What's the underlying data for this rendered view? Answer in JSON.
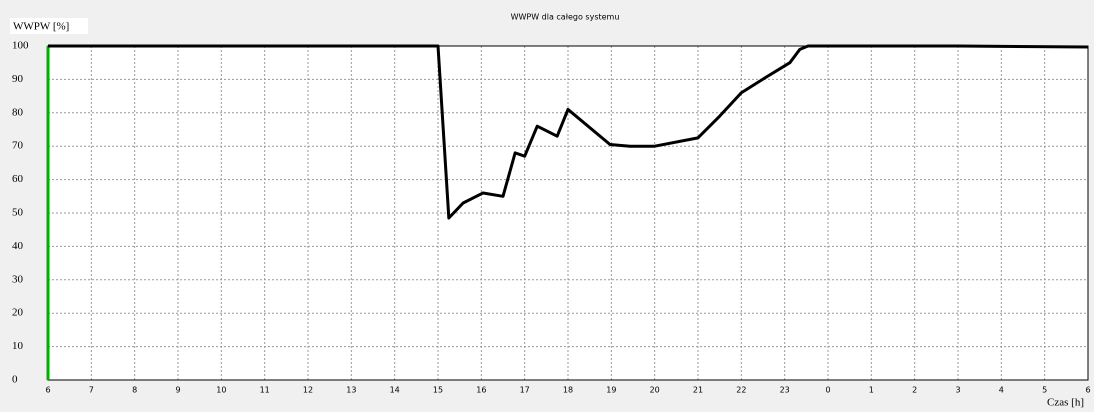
{
  "chart_data": {
    "type": "line",
    "title": "WWPW dla całego systemu",
    "ylabel": "WWPW [%]",
    "xlabel": "Czas [h]",
    "x": [
      6,
      15.0,
      15.25,
      15.58,
      16.04,
      16.5,
      16.78,
      17.0,
      17.29,
      17.75,
      18.0,
      18.97,
      19.43,
      20.0,
      21.0,
      21.5,
      22.0,
      22.55,
      23.12,
      23.35,
      23.54,
      27.0,
      30
    ],
    "series": [
      {
        "color": "#000000",
        "values": [
          100,
          100,
          48.5,
          53,
          56,
          55,
          68,
          67,
          76,
          73,
          81,
          70.5,
          70,
          70,
          72.5,
          79,
          86,
          90.5,
          95,
          99,
          100,
          100,
          99.7
        ]
      }
    ],
    "cursor": {
      "x": 6,
      "color": "#00b000"
    },
    "xlim": [
      6,
      30
    ],
    "xticks": [
      6,
      7,
      8,
      9,
      10,
      11,
      12,
      13,
      14,
      15,
      16,
      17,
      18,
      19,
      20,
      21,
      22,
      23,
      {
        "value": 24,
        "label": "0"
      },
      {
        "value": 25,
        "label": "1"
      },
      {
        "value": 26,
        "label": "2"
      },
      {
        "value": 27,
        "label": "3"
      },
      {
        "value": 28,
        "label": "4"
      },
      {
        "value": 29,
        "label": "5"
      },
      {
        "value": 30,
        "label": "6"
      }
    ],
    "ylim": [
      0,
      100
    ],
    "yticks": [
      0,
      10,
      20,
      30,
      40,
      50,
      60,
      70,
      80,
      90,
      100
    ],
    "grid": true
  }
}
